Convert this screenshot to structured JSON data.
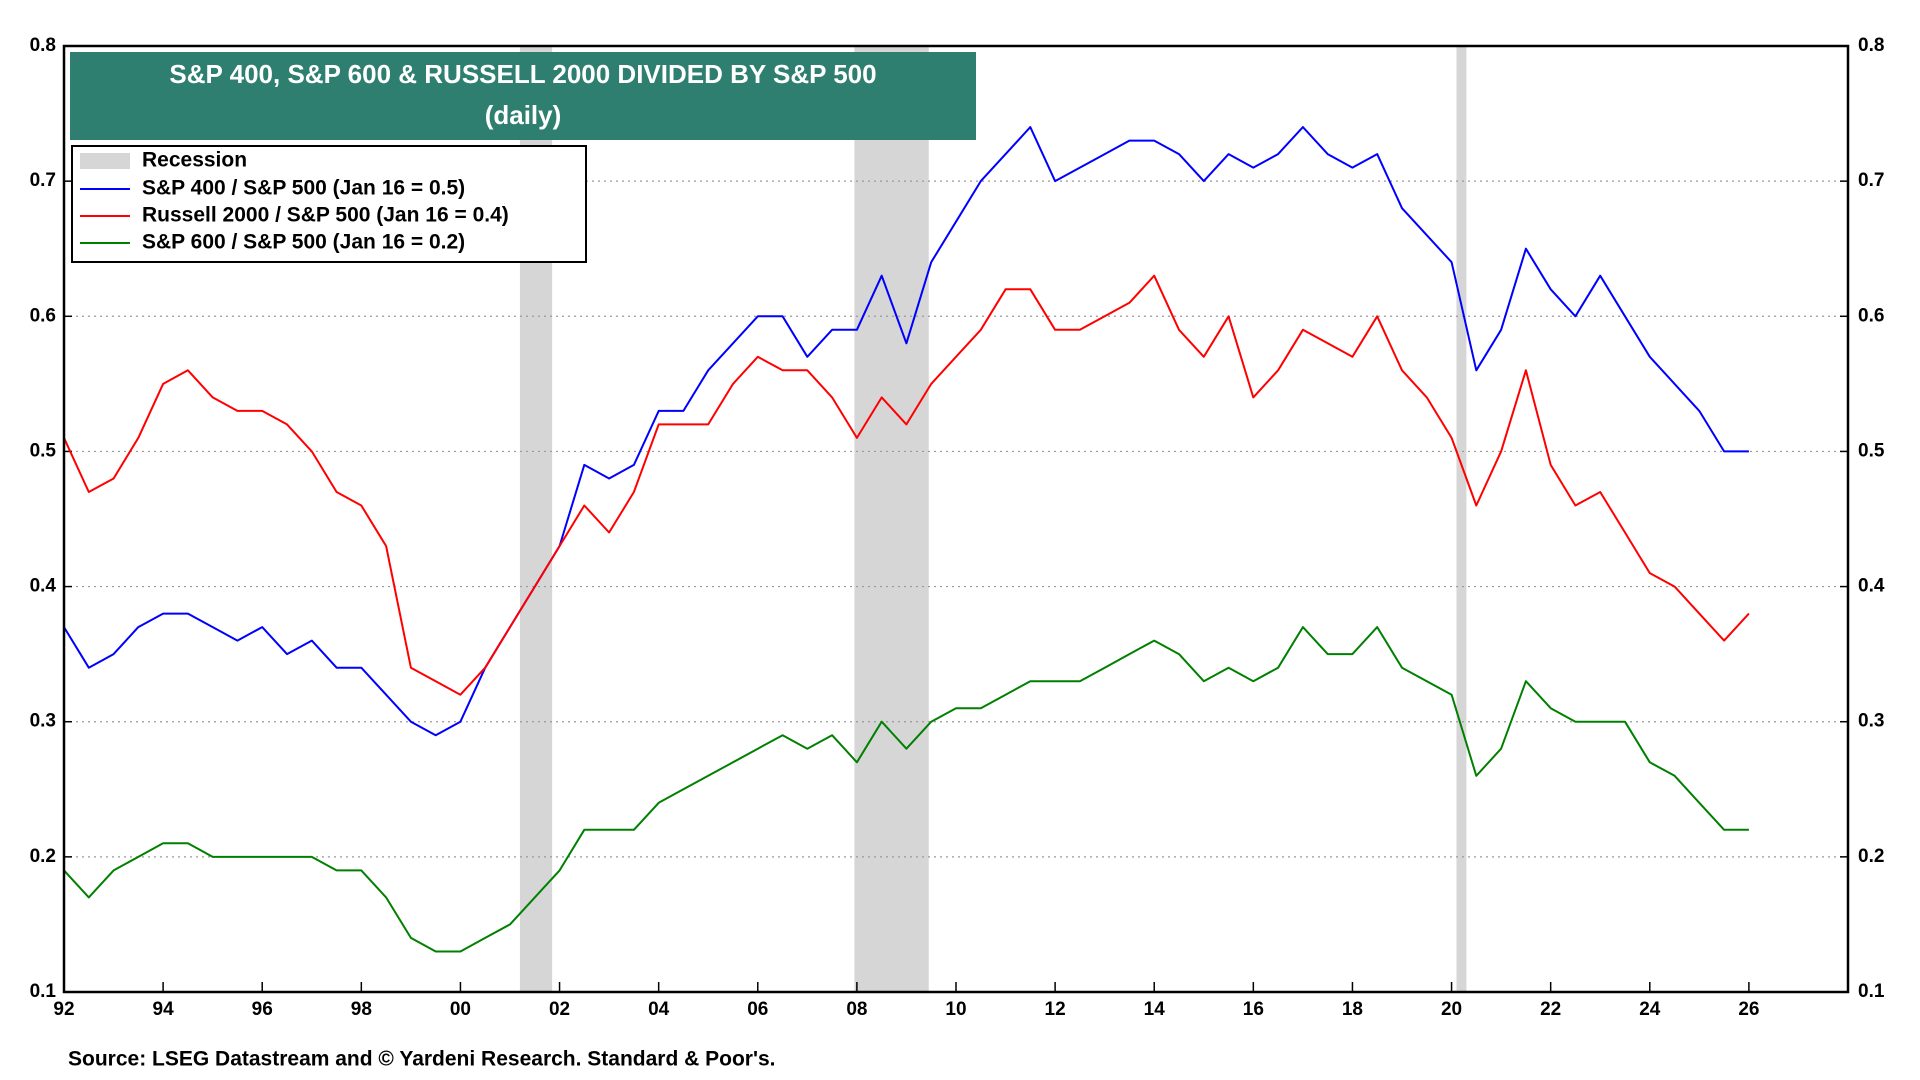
{
  "chart_data": {
    "type": "line",
    "title": "S&P 400, S&P 600 & RUSSELL 2000 DIVIDED BY S&P 500",
    "subtitle": "(daily)",
    "source": "Source: LSEG Datastream and © Yardeni Research. Standard & Poor's.",
    "recession_label": "Recession",
    "recessions": [
      [
        2001.2,
        2001.85
      ],
      [
        2007.95,
        2009.45
      ],
      [
        2020.1,
        2020.3
      ]
    ],
    "recession_color": "#d6d6d6",
    "x": [
      1992,
      1992.5,
      1993,
      1993.5,
      1994,
      1994.5,
      1995,
      1995.5,
      1996,
      1996.5,
      1997,
      1997.5,
      1998,
      1998.5,
      1999,
      1999.5,
      2000,
      2000.5,
      2001,
      2001.5,
      2002,
      2002.5,
      2003,
      2003.5,
      2004,
      2004.5,
      2005,
      2005.5,
      2006,
      2006.5,
      2007,
      2007.5,
      2008,
      2008.5,
      2009,
      2009.5,
      2010,
      2010.5,
      2011,
      2011.5,
      2012,
      2012.5,
      2013,
      2013.5,
      2014,
      2014.5,
      2015,
      2015.5,
      2016,
      2016.5,
      2017,
      2017.5,
      2018,
      2018.5,
      2019,
      2019.5,
      2020,
      2020.5,
      2021,
      2021.5,
      2022,
      2022.5,
      2023,
      2023.5,
      2024,
      2024.5,
      2025,
      2025.5,
      2026
    ],
    "series": [
      {
        "name": "S&P 400 / S&P 500 (Jan 16 = 0.5)",
        "color": "#0000ff",
        "values": [
          0.37,
          0.34,
          0.35,
          0.37,
          0.38,
          0.38,
          0.37,
          0.36,
          0.37,
          0.35,
          0.36,
          0.34,
          0.34,
          0.32,
          0.3,
          0.29,
          0.3,
          0.34,
          0.37,
          0.4,
          0.43,
          0.49,
          0.48,
          0.49,
          0.53,
          0.53,
          0.56,
          0.58,
          0.6,
          0.6,
          0.57,
          0.59,
          0.59,
          0.63,
          0.58,
          0.64,
          0.67,
          0.7,
          0.72,
          0.74,
          0.7,
          0.71,
          0.72,
          0.73,
          0.73,
          0.72,
          0.7,
          0.72,
          0.71,
          0.72,
          0.74,
          0.72,
          0.71,
          0.72,
          0.68,
          0.66,
          0.64,
          0.56,
          0.59,
          0.65,
          0.62,
          0.6,
          0.63,
          0.6,
          0.57,
          0.55,
          0.53,
          0.5,
          0.5
        ]
      },
      {
        "name": "Russell 2000 / S&P 500 (Jan 16 = 0.4)",
        "color": "#ff0000",
        "values": [
          0.51,
          0.47,
          0.48,
          0.51,
          0.55,
          0.56,
          0.54,
          0.53,
          0.53,
          0.52,
          0.5,
          0.47,
          0.46,
          0.43,
          0.34,
          0.33,
          0.32,
          0.34,
          0.37,
          0.4,
          0.43,
          0.46,
          0.44,
          0.47,
          0.52,
          0.52,
          0.52,
          0.55,
          0.57,
          0.56,
          0.56,
          0.54,
          0.51,
          0.54,
          0.52,
          0.55,
          0.57,
          0.59,
          0.62,
          0.62,
          0.59,
          0.59,
          0.6,
          0.61,
          0.63,
          0.59,
          0.57,
          0.6,
          0.54,
          0.56,
          0.59,
          0.58,
          0.57,
          0.6,
          0.56,
          0.54,
          0.51,
          0.46,
          0.5,
          0.56,
          0.49,
          0.46,
          0.47,
          0.44,
          0.41,
          0.4,
          0.38,
          0.36,
          0.38
        ]
      },
      {
        "name": "S&P 600 / S&P 500 (Jan 16 = 0.2)",
        "color": "#008000",
        "values": [
          0.19,
          0.17,
          0.19,
          0.2,
          0.21,
          0.21,
          0.2,
          0.2,
          0.2,
          0.2,
          0.2,
          0.19,
          0.19,
          0.17,
          0.14,
          0.13,
          0.13,
          0.14,
          0.15,
          0.17,
          0.19,
          0.22,
          0.22,
          0.22,
          0.24,
          0.25,
          0.26,
          0.27,
          0.28,
          0.29,
          0.28,
          0.29,
          0.27,
          0.3,
          0.28,
          0.3,
          0.31,
          0.31,
          0.32,
          0.33,
          0.33,
          0.33,
          0.34,
          0.35,
          0.36,
          0.35,
          0.33,
          0.34,
          0.33,
          0.34,
          0.37,
          0.35,
          0.35,
          0.37,
          0.34,
          0.33,
          0.32,
          0.26,
          0.28,
          0.33,
          0.31,
          0.3,
          0.3,
          0.3,
          0.27,
          0.26,
          0.24,
          0.22,
          0.22
        ]
      }
    ],
    "xlim": [
      1992,
      2028
    ],
    "xticks": [
      {
        "value": 1992,
        "label": "92"
      },
      {
        "value": 1994,
        "label": "94"
      },
      {
        "value": 1996,
        "label": "96"
      },
      {
        "value": 1998,
        "label": "98"
      },
      {
        "value": 2000,
        "label": "00"
      },
      {
        "value": 2002,
        "label": "02"
      },
      {
        "value": 2004,
        "label": "04"
      },
      {
        "value": 2006,
        "label": "06"
      },
      {
        "value": 2008,
        "label": "08"
      },
      {
        "value": 2010,
        "label": "10"
      },
      {
        "value": 2012,
        "label": "12"
      },
      {
        "value": 2014,
        "label": "14"
      },
      {
        "value": 2016,
        "label": "16"
      },
      {
        "value": 2018,
        "label": "18"
      },
      {
        "value": 2020,
        "label": "20"
      },
      {
        "value": 2022,
        "label": "22"
      },
      {
        "value": 2024,
        "label": "24"
      },
      {
        "value": 2026,
        "label": "26"
      }
    ],
    "ylim": [
      0.1,
      0.8
    ],
    "yticks": [
      0.1,
      0.2,
      0.3,
      0.4,
      0.5,
      0.6,
      0.7,
      0.8
    ],
    "grid": true,
    "title_color": "#2e7f70"
  }
}
